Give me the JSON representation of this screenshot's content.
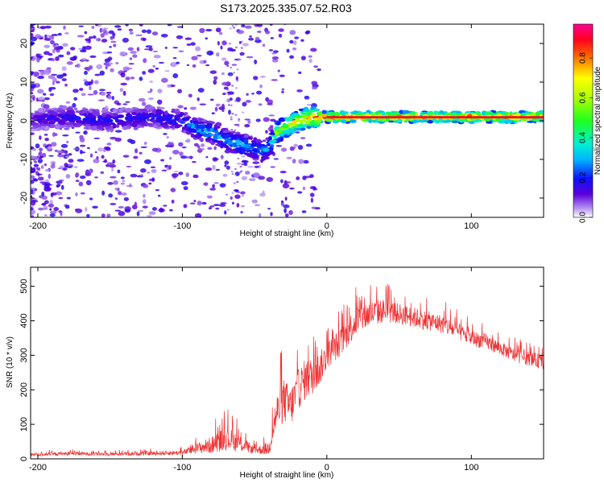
{
  "page": {
    "title": "S173.2025.335.07.52.R03"
  },
  "chart_data": [
    {
      "type": "heatmap",
      "xlabel": "Height of straight line (km)",
      "ylabel": "Frequency (Hz)",
      "xlim": [
        -205,
        150
      ],
      "ylim": [
        -25,
        25
      ],
      "xticks": [
        -200,
        -100,
        0,
        100
      ],
      "xtick_labels": [
        "-200",
        "-100",
        "0",
        "100"
      ],
      "yticks": [
        -20,
        -10,
        0,
        10,
        20
      ],
      "ytick_labels": [
        "-20",
        "-10",
        "0",
        "10",
        "20"
      ],
      "colorbar": {
        "label": "Normalized spectral amplitude",
        "range": [
          0,
          0.97
        ],
        "ticks": [
          0.0,
          0.2,
          0.4,
          0.6,
          0.8
        ],
        "tick_labels": [
          "0.0",
          "0.2",
          "0.4",
          "0.6",
          "0.8"
        ],
        "colormap": "rainbow (white at 0, violet, blue, cyan, green, yellow, red, magenta at max)"
      },
      "ridge": {
        "description": "Doppler ridge: scattered noise below -100 km, signal trending from ~0 Hz at -100 km down to ~-8 Hz near -40 km, then narrow band near +1 Hz from 0 to 150 km",
        "x": [
          -205,
          -180,
          -150,
          -120,
          -100,
          -90,
          -80,
          -70,
          -60,
          -50,
          -45,
          -40,
          -35,
          -30,
          -20,
          -10,
          -5,
          0,
          20,
          50,
          80,
          110,
          150
        ],
        "freq": [
          0,
          1,
          0,
          1,
          0,
          -2,
          -3,
          -5,
          -6,
          -7,
          -8,
          -7,
          -3,
          -2,
          0,
          1,
          1,
          1,
          1,
          1,
          1,
          1,
          1
        ],
        "amplitude": [
          0.15,
          0.2,
          0.2,
          0.2,
          0.25,
          0.3,
          0.35,
          0.3,
          0.35,
          0.3,
          0.3,
          0.3,
          0.6,
          0.6,
          0.8,
          0.85,
          0.9,
          0.9,
          0.9,
          0.85,
          0.85,
          0.9,
          0.9
        ]
      }
    },
    {
      "type": "line",
      "xlabel": "Height of straight line (km)",
      "ylabel": "SNR (10 * v/v)",
      "xlim": [
        -205,
        150
      ],
      "ylim": [
        0,
        555
      ],
      "xticks": [
        -200,
        -100,
        0,
        100
      ],
      "xtick_labels": [
        "-200",
        "-100",
        "0",
        "100"
      ],
      "yticks": [
        0,
        100,
        200,
        300,
        400,
        500
      ],
      "ytick_labels": [
        "0",
        "100",
        "200",
        "300",
        "400",
        "500"
      ],
      "color": "#ee3333",
      "series": [
        {
          "name": "SNR",
          "x": [
            -205,
            -180,
            -150,
            -120,
            -100,
            -90,
            -80,
            -70,
            -60,
            -50,
            -40,
            -35,
            -30,
            -25,
            -20,
            -15,
            -10,
            -5,
            0,
            10,
            20,
            30,
            40,
            50,
            60,
            70,
            80,
            90,
            100,
            110,
            120,
            130,
            140,
            150
          ],
          "y": [
            12,
            15,
            14,
            16,
            18,
            30,
            40,
            60,
            45,
            25,
            30,
            130,
            170,
            150,
            200,
            230,
            240,
            260,
            300,
            340,
            400,
            420,
            430,
            420,
            410,
            400,
            390,
            370,
            350,
            340,
            320,
            300,
            290,
            280
          ],
          "spread": [
            10,
            10,
            10,
            12,
            14,
            30,
            50,
            70,
            50,
            20,
            40,
            110,
            130,
            120,
            120,
            120,
            110,
            100,
            80,
            80,
            90,
            80,
            70,
            60,
            60,
            55,
            55,
            50,
            45,
            45,
            40,
            40,
            40,
            45
          ]
        }
      ]
    }
  ]
}
